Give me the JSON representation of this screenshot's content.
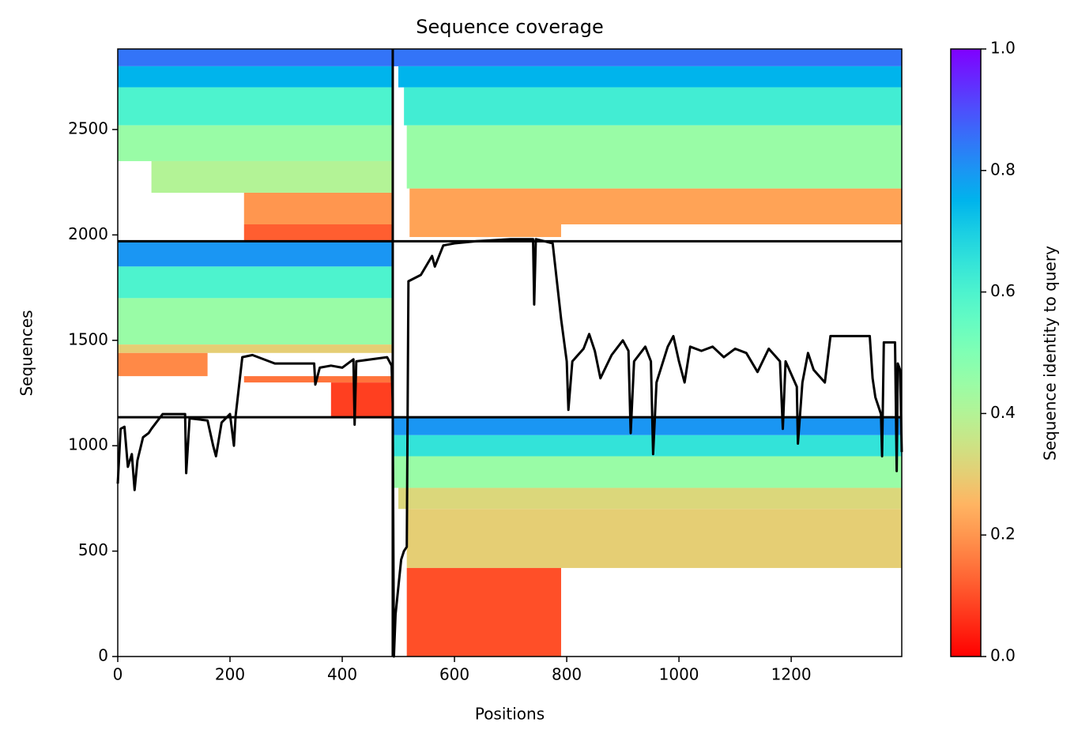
{
  "chart_data": {
    "type": "coverage",
    "title": "Sequence coverage",
    "x_label": "Positions",
    "y_label": "Sequences",
    "colorbar_label": "Sequence identity to query",
    "xlim": [
      0,
      1397
    ],
    "xticks": [
      0,
      200,
      400,
      600,
      800,
      1000,
      1200
    ],
    "ylim": [
      0,
      2882
    ],
    "yticks": [
      0,
      500,
      1000,
      1500,
      2000,
      2500
    ],
    "clim": [
      0,
      1
    ],
    "cticks": [
      {
        "value": 0,
        "label": "0.0"
      },
      0.2,
      0.4,
      0.6,
      0.8,
      {
        "value": 1,
        "label": "1.0"
      }
    ],
    "chain_breaks_x": [
      490
    ],
    "chain_breaks_y": [
      1135,
      1970
    ],
    "blocks": [
      {
        "x0": 0,
        "x1": 490,
        "y0": 2800,
        "y1": 2882,
        "identity": 0.85
      },
      {
        "x0": 0,
        "x1": 490,
        "y0": 2700,
        "y1": 2800,
        "identity": 0.75
      },
      {
        "x0": 0,
        "x1": 490,
        "y0": 2520,
        "y1": 2700,
        "identity": 0.6
      },
      {
        "x0": 0,
        "x1": 490,
        "y0": 2350,
        "y1": 2520,
        "identity": 0.45
      },
      {
        "x0": 60,
        "x1": 490,
        "y0": 2200,
        "y1": 2350,
        "identity": 0.4
      },
      {
        "x0": 225,
        "x1": 490,
        "y0": 2050,
        "y1": 2200,
        "identity": 0.2
      },
      {
        "x0": 225,
        "x1": 490,
        "y0": 1970,
        "y1": 2050,
        "identity": 0.12
      },
      {
        "x0": 490,
        "x1": 1397,
        "y0": 2800,
        "y1": 2882,
        "identity": 0.85
      },
      {
        "x0": 500,
        "x1": 1397,
        "y0": 2700,
        "y1": 2800,
        "identity": 0.75
      },
      {
        "x0": 510,
        "x1": 1397,
        "y0": 2520,
        "y1": 2700,
        "identity": 0.62
      },
      {
        "x0": 515,
        "x1": 1397,
        "y0": 2220,
        "y1": 2520,
        "identity": 0.45
      },
      {
        "x0": 520,
        "x1": 1397,
        "y0": 2050,
        "y1": 2220,
        "identity": 0.22
      },
      {
        "x0": 520,
        "x1": 790,
        "y0": 1990,
        "y1": 2050,
        "identity": 0.22
      },
      {
        "x0": 0,
        "x1": 490,
        "y0": 1850,
        "y1": 1970,
        "identity": 0.8
      },
      {
        "x0": 0,
        "x1": 490,
        "y0": 1700,
        "y1": 1850,
        "identity": 0.6
      },
      {
        "x0": 0,
        "x1": 490,
        "y0": 1480,
        "y1": 1700,
        "identity": 0.45
      },
      {
        "x0": 0,
        "x1": 490,
        "y0": 1440,
        "y1": 1480,
        "identity": 0.3
      },
      {
        "x0": 0,
        "x1": 160,
        "y0": 1330,
        "y1": 1440,
        "identity": 0.18
      },
      {
        "x0": 225,
        "x1": 490,
        "y0": 1300,
        "y1": 1330,
        "identity": 0.15
      },
      {
        "x0": 380,
        "x1": 490,
        "y0": 1135,
        "y1": 1300,
        "identity": 0.08
      },
      {
        "x0": 490,
        "x1": 1397,
        "y0": 1050,
        "y1": 1135,
        "identity": 0.8
      },
      {
        "x0": 490,
        "x1": 1397,
        "y0": 950,
        "y1": 1050,
        "identity": 0.65
      },
      {
        "x0": 490,
        "x1": 1397,
        "y0": 800,
        "y1": 950,
        "identity": 0.45
      },
      {
        "x0": 500,
        "x1": 1397,
        "y0": 700,
        "y1": 800,
        "identity": 0.32
      },
      {
        "x0": 515,
        "x1": 1397,
        "y0": 420,
        "y1": 700,
        "identity": 0.3
      },
      {
        "x0": 515,
        "x1": 790,
        "y0": 0,
        "y1": 420,
        "identity": 0.1
      }
    ],
    "series": [
      {
        "color": "#000000",
        "x": [
          0,
          5,
          12,
          18,
          25,
          30,
          35,
          45,
          55,
          60,
          80,
          120,
          122,
          128,
          160,
          170,
          175,
          185,
          200,
          207,
          210,
          222,
          240,
          280,
          350,
          352,
          360,
          380,
          400,
          420,
          422,
          425,
          480,
          488,
          490,
          492,
          495,
          505,
          510,
          515,
          518,
          540,
          560,
          565,
          580,
          600,
          640,
          700,
          740,
          742,
          745,
          760,
          775,
          790,
          800,
          803,
          810,
          830,
          840,
          850,
          860,
          880,
          900,
          910,
          914,
          920,
          940,
          950,
          954,
          960,
          980,
          990,
          1000,
          1010,
          1020,
          1040,
          1060,
          1080,
          1100,
          1120,
          1140,
          1160,
          1180,
          1185,
          1190,
          1210,
          1212,
          1220,
          1230,
          1240,
          1260,
          1270,
          1300,
          1340,
          1345,
          1350,
          1360,
          1362,
          1365,
          1385,
          1388,
          1390,
          1394,
          1397
        ],
        "values": [
          820,
          1080,
          1090,
          900,
          960,
          790,
          930,
          1040,
          1060,
          1080,
          1150,
          1150,
          870,
          1130,
          1120,
          1000,
          950,
          1110,
          1150,
          1000,
          1140,
          1420,
          1430,
          1390,
          1390,
          1290,
          1370,
          1380,
          1370,
          1410,
          1100,
          1400,
          1420,
          1380,
          1200,
          0,
          200,
          460,
          500,
          520,
          1780,
          1810,
          1900,
          1850,
          1950,
          1960,
          1970,
          1980,
          1980,
          1670,
          1980,
          1970,
          1960,
          1600,
          1400,
          1170,
          1400,
          1460,
          1530,
          1450,
          1320,
          1430,
          1500,
          1450,
          1060,
          1400,
          1470,
          1400,
          960,
          1300,
          1470,
          1520,
          1400,
          1300,
          1470,
          1450,
          1470,
          1420,
          1460,
          1440,
          1350,
          1460,
          1400,
          1080,
          1400,
          1280,
          1010,
          1300,
          1440,
          1360,
          1300,
          1520,
          1520,
          1520,
          1320,
          1230,
          1150,
          950,
          1490,
          1490,
          880,
          1390,
          1360,
          970
        ]
      }
    ]
  }
}
